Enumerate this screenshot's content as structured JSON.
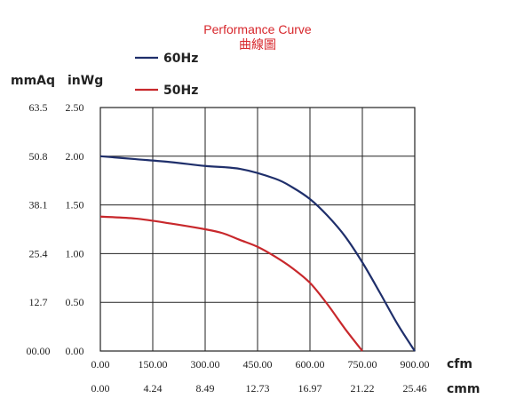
{
  "chart_data": {
    "type": "line",
    "title": "Performance Curve",
    "subtitle": "曲線圖",
    "y_units": [
      "mmAq",
      "inWg"
    ],
    "x_units": [
      "cfm",
      "cmm"
    ],
    "x_ticks_primary": [
      "0.00",
      "150.00",
      "300.00",
      "450.00",
      "600.00",
      "750.00",
      "900.00"
    ],
    "x_ticks_secondary": [
      "0.00",
      "4.24",
      "8.49",
      "12.73",
      "16.97",
      "21.22",
      "25.46"
    ],
    "y_ticks_primary": [
      "63.5",
      "50.8",
      "38.1",
      "25.4",
      "12.7",
      "00.00"
    ],
    "y_ticks_secondary": [
      "2.50",
      "2.00",
      "1.50",
      "1.00",
      "0.50",
      "0.00"
    ],
    "xlim": [
      0,
      900
    ],
    "ylim": [
      0,
      2.5
    ],
    "grid": true,
    "legend_position": "top-left",
    "series": [
      {
        "name": "60Hz",
        "color": "#1f2f6b",
        "x": [
          0,
          100,
          200,
          300,
          400,
          500,
          550,
          600,
          650,
          700,
          750,
          800,
          850,
          900
        ],
        "y": [
          2.0,
          1.97,
          1.94,
          1.9,
          1.87,
          1.77,
          1.68,
          1.56,
          1.39,
          1.18,
          0.91,
          0.6,
          0.28,
          0.0
        ]
      },
      {
        "name": "50Hz",
        "color": "#c8282c",
        "x": [
          0,
          100,
          200,
          300,
          350,
          400,
          450,
          500,
          550,
          600,
          650,
          700,
          750
        ],
        "y": [
          1.38,
          1.36,
          1.31,
          1.25,
          1.21,
          1.14,
          1.07,
          0.97,
          0.85,
          0.7,
          0.48,
          0.23,
          0.0
        ]
      }
    ]
  }
}
